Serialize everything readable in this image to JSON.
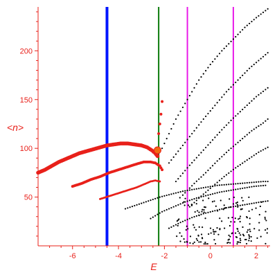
{
  "chart_data": {
    "type": "scatter",
    "title": "",
    "xlabel": "E",
    "ylabel": "<n>",
    "xlim": [
      -7.5,
      2.6
    ],
    "ylim": [
      0,
      245
    ],
    "grid": false,
    "x_ticks": [
      -6,
      -4,
      -2,
      0,
      2
    ],
    "y_ticks": [
      50,
      100,
      150,
      200
    ],
    "colors": {
      "axis": "#e8201a",
      "red_series": "#e8201a",
      "black_series": "#000000"
    },
    "vertical_lines": [
      {
        "x": -4.5,
        "color": "#0015ff",
        "width": "thick"
      },
      {
        "x": -2.25,
        "color": "#0a7a0a",
        "width": "medium"
      },
      {
        "x": -1.0,
        "color": "#e81ae8",
        "width": "medium"
      },
      {
        "x": 1.0,
        "color": "#e81ae8",
        "width": "medium"
      }
    ],
    "red_series": [
      {
        "name": "branch-1",
        "dot": "large",
        "points": [
          [
            -7.5,
            75
          ],
          [
            -7.2,
            78
          ],
          [
            -6.9,
            82
          ],
          [
            -6.6,
            86
          ],
          [
            -6.3,
            89
          ],
          [
            -6.0,
            92
          ],
          [
            -5.7,
            95
          ],
          [
            -5.4,
            97
          ],
          [
            -5.1,
            99
          ],
          [
            -4.8,
            101
          ],
          [
            -4.5,
            103
          ],
          [
            -4.2,
            104
          ],
          [
            -3.9,
            105
          ],
          [
            -3.6,
            105
          ],
          [
            -3.3,
            104
          ],
          [
            -3.0,
            103
          ],
          [
            -2.75,
            101
          ],
          [
            -2.55,
            98
          ],
          [
            -2.4,
            95
          ],
          [
            -2.3,
            92
          ]
        ]
      },
      {
        "name": "branch-2",
        "dot": "medium",
        "points": [
          [
            -6.0,
            61
          ],
          [
            -5.6,
            64
          ],
          [
            -5.2,
            68
          ],
          [
            -4.8,
            71
          ],
          [
            -4.4,
            75
          ],
          [
            -4.0,
            78
          ],
          [
            -3.6,
            81
          ],
          [
            -3.2,
            84
          ],
          [
            -2.9,
            86
          ],
          [
            -2.6,
            86
          ],
          [
            -2.4,
            85
          ],
          [
            -2.2,
            82
          ],
          [
            -2.1,
            78
          ]
        ]
      },
      {
        "name": "branch-3",
        "dot": "small",
        "points": [
          [
            -4.8,
            48
          ],
          [
            -4.4,
            51
          ],
          [
            -4.0,
            54
          ],
          [
            -3.6,
            57
          ],
          [
            -3.2,
            60
          ],
          [
            -2.9,
            63
          ],
          [
            -2.6,
            66
          ],
          [
            -2.4,
            67
          ],
          [
            -2.2,
            66
          ]
        ]
      },
      {
        "name": "rising",
        "dot": "medium",
        "points": [
          [
            -2.3,
            100
          ],
          [
            -2.25,
            115
          ],
          [
            -2.2,
            125
          ],
          [
            -2.15,
            135
          ],
          [
            -2.1,
            148
          ]
        ]
      }
    ],
    "highlight_point": {
      "x": -2.3,
      "y": 98,
      "color": "#f06a10"
    },
    "black_series": [
      {
        "name": "curve-1",
        "points": [
          [
            -2.1,
            100
          ],
          [
            -1.5,
            130
          ],
          [
            -1.0,
            150
          ],
          [
            -0.5,
            170
          ],
          [
            0.0,
            186
          ],
          [
            0.5,
            200
          ],
          [
            1.0,
            212
          ],
          [
            1.5,
            224
          ],
          [
            2.0,
            234
          ],
          [
            2.5,
            243
          ]
        ]
      },
      {
        "name": "curve-2",
        "points": [
          [
            -1.8,
            85
          ],
          [
            -1.3,
            100
          ],
          [
            -0.8,
            115
          ],
          [
            -0.3,
            130
          ],
          [
            0.2,
            144
          ],
          [
            0.7,
            158
          ],
          [
            1.2,
            170
          ],
          [
            1.7,
            182
          ],
          [
            2.2,
            192
          ],
          [
            2.5,
            198
          ]
        ]
      },
      {
        "name": "curve-3",
        "points": [
          [
            -1.5,
            66
          ],
          [
            -1.0,
            80
          ],
          [
            -0.5,
            93
          ],
          [
            0.0,
            106
          ],
          [
            0.5,
            119
          ],
          [
            1.0,
            131
          ],
          [
            1.5,
            142
          ],
          [
            2.0,
            153
          ],
          [
            2.5,
            162
          ]
        ]
      },
      {
        "name": "curve-4",
        "points": [
          [
            -1.2,
            52
          ],
          [
            -0.7,
            64
          ],
          [
            -0.2,
            75
          ],
          [
            0.3,
            87
          ],
          [
            0.8,
            98
          ],
          [
            1.3,
            108
          ],
          [
            1.8,
            118
          ],
          [
            2.3,
            126
          ],
          [
            2.5,
            130
          ]
        ]
      },
      {
        "name": "curve-5",
        "points": [
          [
            -0.9,
            40
          ],
          [
            -0.4,
            51
          ],
          [
            0.1,
            61
          ],
          [
            0.6,
            71
          ],
          [
            1.1,
            80
          ],
          [
            1.6,
            88
          ],
          [
            2.1,
            96
          ],
          [
            2.5,
            101
          ]
        ]
      },
      {
        "name": "curve-6",
        "points": [
          [
            -3.7,
            38
          ],
          [
            -3.2,
            42
          ],
          [
            -2.7,
            46
          ],
          [
            -2.2,
            50
          ],
          [
            -1.7,
            53
          ],
          [
            -1.2,
            56
          ],
          [
            -0.7,
            58
          ],
          [
            -0.2,
            60
          ],
          [
            0.3,
            62
          ],
          [
            0.8,
            63
          ],
          [
            1.3,
            64
          ],
          [
            1.8,
            65
          ],
          [
            2.3,
            66
          ],
          [
            2.5,
            66
          ]
        ]
      },
      {
        "name": "curve-7",
        "points": [
          [
            -2.6,
            28
          ],
          [
            -2.1,
            35
          ],
          [
            -1.6,
            40
          ],
          [
            -1.1,
            45
          ],
          [
            -0.6,
            49
          ],
          [
            -0.1,
            52
          ],
          [
            0.4,
            55
          ],
          [
            0.9,
            57
          ],
          [
            1.4,
            59
          ],
          [
            1.9,
            61
          ],
          [
            2.4,
            62
          ]
        ]
      },
      {
        "name": "curve-8",
        "points": [
          [
            -1.8,
            18
          ],
          [
            -1.3,
            24
          ],
          [
            -0.8,
            29
          ],
          [
            -0.3,
            33
          ],
          [
            0.2,
            36
          ],
          [
            0.7,
            39
          ],
          [
            1.2,
            41
          ],
          [
            1.7,
            43
          ],
          [
            2.2,
            45
          ],
          [
            2.5,
            46
          ]
        ]
      }
    ],
    "black_cloud": {
      "x_range": [
        -1.5,
        2.5
      ],
      "y_range": [
        2,
        50
      ],
      "count": 170
    }
  }
}
